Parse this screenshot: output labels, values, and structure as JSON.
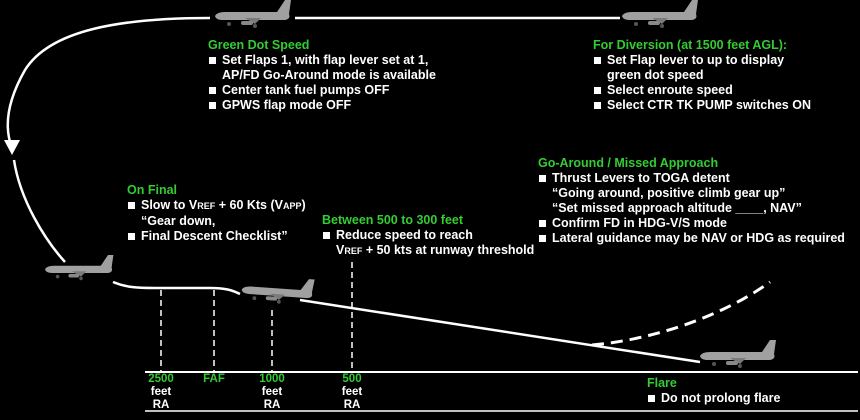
{
  "green_dot": {
    "heading": "Green Dot Speed",
    "items": [
      "Set Flaps 1, with flap lever set at 1,",
      "AP/FD Go-Around mode is available",
      "Center tank fuel pumps OFF",
      "GPWS flap mode OFF"
    ]
  },
  "diversion": {
    "heading": "For Diversion (at 1500 feet AGL):",
    "items": [
      "Set Flap lever to up to display",
      "green dot speed",
      "Select enroute speed",
      "Select CTR TK PUMP switches ON"
    ]
  },
  "go_around": {
    "heading": "Go-Around / Missed Approach",
    "items": [
      "Thrust Levers to TOGA detent",
      "“Going around, positive climb gear up”",
      "“Set missed approach altitude ____, NAV”",
      "Confirm FD in HDG-V/S mode",
      "Lateral guidance may be NAV or HDG as required"
    ]
  },
  "on_final": {
    "heading": "On Final",
    "item1_a": "Slow to V",
    "item1_sub1": "REF",
    "item1_b": " + 60 Kts (V",
    "item1_sub2": "APP",
    "item1_c": ")",
    "quote": "“Gear down,",
    "item2": "Final Descent Checklist”"
  },
  "between": {
    "heading": "Between 500 to 300 feet",
    "item1": "Reduce speed to reach",
    "item2_a": "V",
    "item2_sub": "REF",
    "item2_b": " + 50 kts at runway threshold"
  },
  "flare": {
    "heading": "Flare",
    "item": "Do not prolong flare"
  },
  "markers": [
    {
      "top": "2500",
      "l2": "feet",
      "l3": "RA"
    },
    {
      "top": "FAF",
      "l2": "",
      "l3": ""
    },
    {
      "top": "1000",
      "l2": "feet",
      "l3": "RA"
    },
    {
      "top": "500",
      "l2": "feet",
      "l3": "RA"
    }
  ],
  "colors": {
    "heading": "#33cc33",
    "text": "#ffffff",
    "background": "#000000",
    "aircraft": "#9a9a9a"
  }
}
